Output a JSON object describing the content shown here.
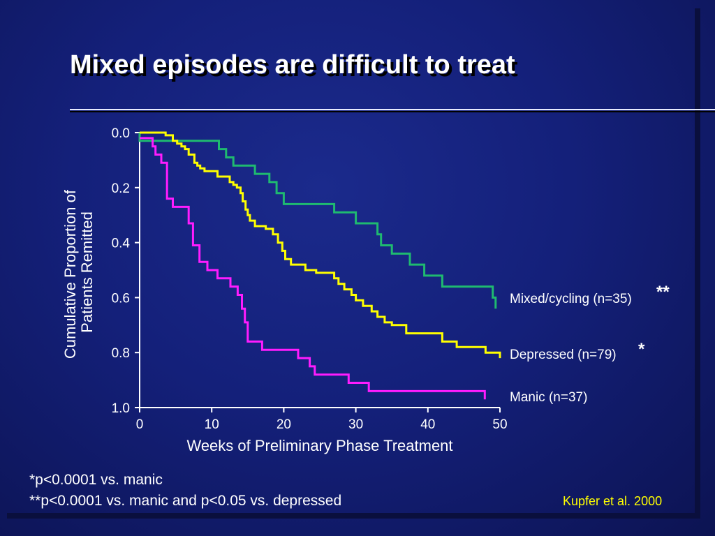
{
  "slide": {
    "title": "Mixed episodes are difficult to treat",
    "footnotes": [
      "*p<0.0001 vs. manic",
      "**p<0.0001 vs. manic and p<0.05 vs. depressed"
    ],
    "citation": "Kupfer et al. 2000"
  },
  "colors": {
    "mixed": "#1fba70",
    "depressed": "#ffff00",
    "manic": "#ff1cff",
    "citation": "#ffff00",
    "axis": "#ffffff"
  },
  "chart_data": {
    "type": "line",
    "xlabel": "Weeks of Preliminary Phase Treatment",
    "ylabel": [
      "Cumulative Proportion of",
      "Patients Remitted"
    ],
    "xlim": [
      0,
      50
    ],
    "ylim": [
      0,
      1
    ],
    "y_inverted": true,
    "x_ticks": [
      0,
      10,
      20,
      30,
      40,
      50
    ],
    "x_tick_labels": [
      "0",
      "10",
      "20",
      "30",
      "40",
      "50"
    ],
    "y_ticks": [
      0,
      0.2,
      0.4,
      0.6,
      0.8,
      1
    ],
    "y_tick_labels": [
      "0.0",
      "0.2",
      "0.4",
      "0.6",
      "0.8",
      "1.0"
    ],
    "grid": false,
    "series": [
      {
        "name": "Mixed/cycling (n=35)",
        "marker": "**",
        "color": "#1fba70",
        "points": [
          [
            0,
            0
          ],
          [
            0,
            0.03
          ],
          [
            11,
            0.03
          ],
          [
            11,
            0.06
          ],
          [
            12,
            0.06
          ],
          [
            12,
            0.09
          ],
          [
            13,
            0.09
          ],
          [
            13,
            0.12
          ],
          [
            16,
            0.12
          ],
          [
            16,
            0.15
          ],
          [
            18,
            0.15
          ],
          [
            18,
            0.18
          ],
          [
            19,
            0.18
          ],
          [
            19,
            0.22
          ],
          [
            20,
            0.22
          ],
          [
            20,
            0.26
          ],
          [
            27,
            0.26
          ],
          [
            27,
            0.29
          ],
          [
            30,
            0.29
          ],
          [
            30,
            0.33
          ],
          [
            33,
            0.33
          ],
          [
            33,
            0.37
          ],
          [
            33.5,
            0.37
          ],
          [
            33.5,
            0.41
          ],
          [
            35,
            0.41
          ],
          [
            35,
            0.44
          ],
          [
            37.5,
            0.44
          ],
          [
            37.5,
            0.48
          ],
          [
            39.5,
            0.48
          ],
          [
            39.5,
            0.52
          ],
          [
            42,
            0.52
          ],
          [
            42,
            0.56
          ],
          [
            49,
            0.56
          ],
          [
            49,
            0.6
          ],
          [
            49.4,
            0.6
          ],
          [
            49.4,
            0.64
          ]
        ]
      },
      {
        "name": "Depressed (n=79)",
        "marker": "*",
        "color": "#ffff00",
        "points": [
          [
            0,
            0
          ],
          [
            3.6,
            0
          ],
          [
            3.6,
            0.01
          ],
          [
            4.6,
            0.01
          ],
          [
            4.6,
            0.03
          ],
          [
            5.2,
            0.03
          ],
          [
            5.2,
            0.04
          ],
          [
            5.8,
            0.04
          ],
          [
            5.8,
            0.05
          ],
          [
            6.3,
            0.05
          ],
          [
            6.3,
            0.06
          ],
          [
            6.8,
            0.06
          ],
          [
            6.8,
            0.08
          ],
          [
            7.6,
            0.08
          ],
          [
            7.6,
            0.11
          ],
          [
            8,
            0.11
          ],
          [
            8,
            0.12
          ],
          [
            8.4,
            0.12
          ],
          [
            8.4,
            0.13
          ],
          [
            9,
            0.13
          ],
          [
            9,
            0.14
          ],
          [
            10.8,
            0.14
          ],
          [
            10.8,
            0.16
          ],
          [
            12.5,
            0.16
          ],
          [
            12.5,
            0.18
          ],
          [
            13,
            0.18
          ],
          [
            13,
            0.19
          ],
          [
            13.5,
            0.19
          ],
          [
            13.5,
            0.2
          ],
          [
            14,
            0.2
          ],
          [
            14,
            0.22
          ],
          [
            14.3,
            0.22
          ],
          [
            14.3,
            0.25
          ],
          [
            14.7,
            0.25
          ],
          [
            14.7,
            0.28
          ],
          [
            15,
            0.28
          ],
          [
            15,
            0.3
          ],
          [
            15.3,
            0.3
          ],
          [
            15.3,
            0.32
          ],
          [
            16,
            0.32
          ],
          [
            16,
            0.34
          ],
          [
            17.5,
            0.34
          ],
          [
            17.5,
            0.35
          ],
          [
            18.5,
            0.35
          ],
          [
            18.5,
            0.37
          ],
          [
            19.2,
            0.37
          ],
          [
            19.2,
            0.4
          ],
          [
            19.8,
            0.4
          ],
          [
            19.8,
            0.43
          ],
          [
            20.2,
            0.43
          ],
          [
            20.2,
            0.46
          ],
          [
            21,
            0.46
          ],
          [
            21,
            0.48
          ],
          [
            23,
            0.48
          ],
          [
            23,
            0.5
          ],
          [
            24.5,
            0.5
          ],
          [
            24.5,
            0.51
          ],
          [
            27,
            0.51
          ],
          [
            27,
            0.53
          ],
          [
            27.6,
            0.53
          ],
          [
            27.6,
            0.55
          ],
          [
            28.4,
            0.55
          ],
          [
            28.4,
            0.57
          ],
          [
            29.4,
            0.57
          ],
          [
            29.4,
            0.59
          ],
          [
            30,
            0.59
          ],
          [
            30,
            0.61
          ],
          [
            31,
            0.61
          ],
          [
            31,
            0.63
          ],
          [
            32.2,
            0.63
          ],
          [
            32.2,
            0.65
          ],
          [
            33,
            0.65
          ],
          [
            33,
            0.67
          ],
          [
            34,
            0.67
          ],
          [
            34,
            0.69
          ],
          [
            35,
            0.69
          ],
          [
            35,
            0.7
          ],
          [
            37,
            0.7
          ],
          [
            37,
            0.73
          ],
          [
            42,
            0.73
          ],
          [
            42,
            0.76
          ],
          [
            44,
            0.76
          ],
          [
            44,
            0.78
          ],
          [
            48,
            0.78
          ],
          [
            48,
            0.8
          ],
          [
            50,
            0.8
          ],
          [
            50,
            0.82
          ]
        ]
      },
      {
        "name": "Manic (n=37)",
        "marker": "",
        "color": "#ff1cff",
        "points": [
          [
            0,
            0.02
          ],
          [
            1.8,
            0.02
          ],
          [
            1.8,
            0.05
          ],
          [
            2.2,
            0.05
          ],
          [
            2.2,
            0.08
          ],
          [
            3,
            0.08
          ],
          [
            3,
            0.11
          ],
          [
            3.8,
            0.11
          ],
          [
            3.8,
            0.24
          ],
          [
            4.6,
            0.24
          ],
          [
            4.6,
            0.27
          ],
          [
            6.8,
            0.27
          ],
          [
            6.8,
            0.33
          ],
          [
            7.4,
            0.33
          ],
          [
            7.4,
            0.41
          ],
          [
            8.3,
            0.41
          ],
          [
            8.3,
            0.47
          ],
          [
            9.4,
            0.47
          ],
          [
            9.4,
            0.5
          ],
          [
            10.8,
            0.5
          ],
          [
            10.8,
            0.53
          ],
          [
            12.6,
            0.53
          ],
          [
            12.6,
            0.56
          ],
          [
            13.6,
            0.56
          ],
          [
            13.6,
            0.59
          ],
          [
            14.2,
            0.59
          ],
          [
            14.2,
            0.64
          ],
          [
            14.6,
            0.64
          ],
          [
            14.6,
            0.69
          ],
          [
            15,
            0.69
          ],
          [
            15,
            0.76
          ],
          [
            17,
            0.76
          ],
          [
            17,
            0.79
          ],
          [
            22,
            0.79
          ],
          [
            22,
            0.82
          ],
          [
            23.6,
            0.82
          ],
          [
            23.6,
            0.85
          ],
          [
            24.3,
            0.85
          ],
          [
            24.3,
            0.88
          ],
          [
            29,
            0.88
          ],
          [
            29,
            0.91
          ],
          [
            31.8,
            0.91
          ],
          [
            31.8,
            0.94
          ],
          [
            47.9,
            0.94
          ],
          [
            47.9,
            0.97
          ]
        ]
      }
    ]
  }
}
